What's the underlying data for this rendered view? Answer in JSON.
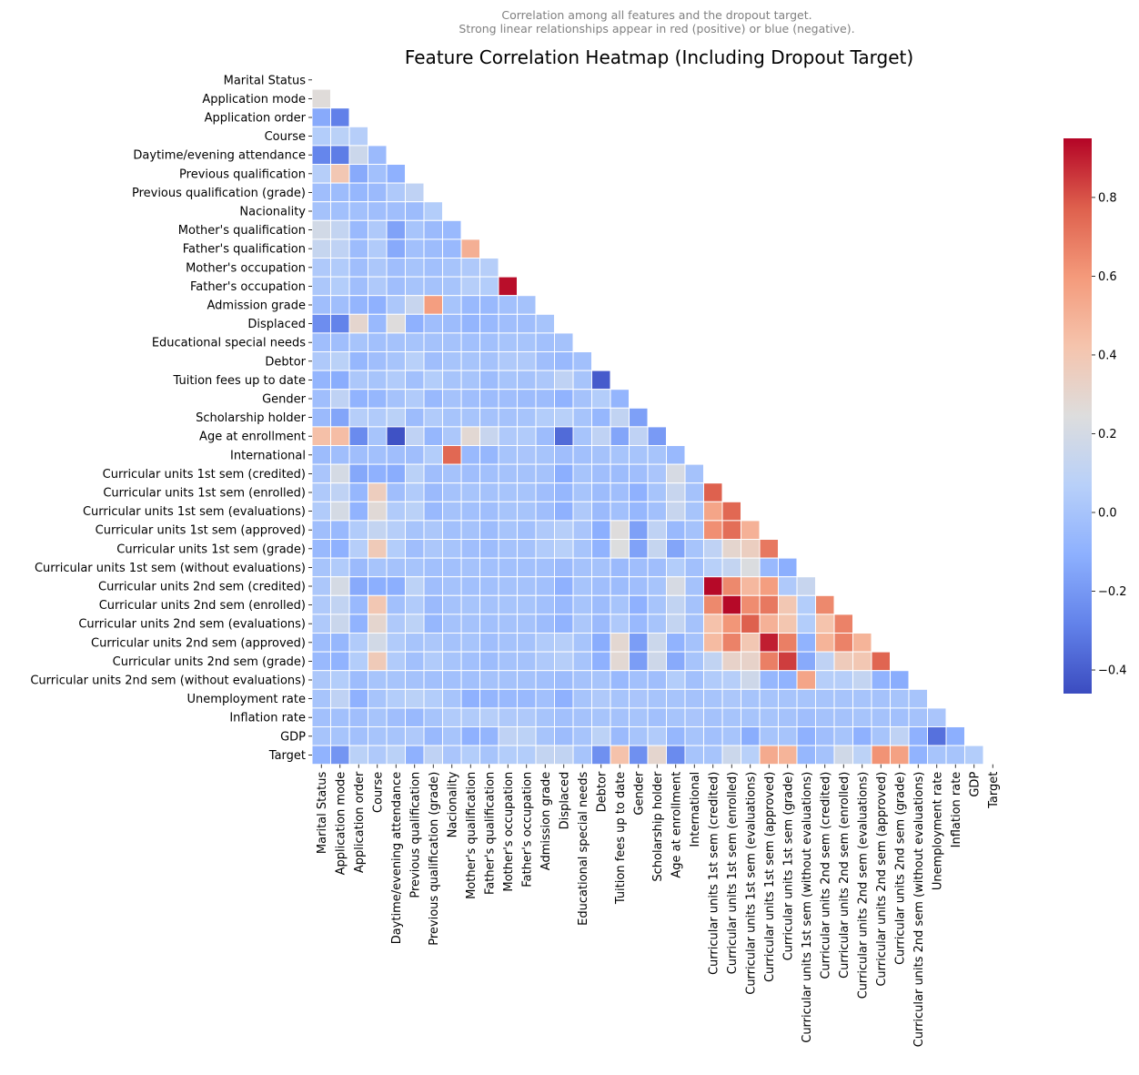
{
  "chart_data": {
    "type": "heatmap",
    "title": "Feature Correlation Heatmap (Including Dropout Target)",
    "subtitle": [
      "Correlation among all features and the dropout target.",
      "Strong linear relationships appear in red (positive) or blue (negative)."
    ],
    "xlabel": "",
    "ylabel": "",
    "mask": "upper-triangle-including-diagonal",
    "colormap": "coolwarm",
    "colors": {
      "low": "#3b4cc0",
      "mid": "#dddddd",
      "high": "#b40426",
      "cell_border": "#ffffff"
    },
    "vmin": -0.46,
    "vmax": 0.95,
    "colorbar": {
      "ticks": [
        -0.4,
        -0.2,
        0.0,
        0.2,
        0.4,
        0.6,
        0.8
      ],
      "tick_labels": [
        "−0.4",
        "−0.2",
        "0.0",
        "0.2",
        "0.4",
        "0.6",
        "0.8"
      ]
    },
    "features": [
      "Marital Status",
      "Application mode",
      "Application order",
      "Course",
      "Daytime/evening attendance",
      "Previous qualification",
      "Previous qualification (grade)",
      "Nacionality",
      "Mother's qualification",
      "Father's qualification",
      "Mother's occupation",
      "Father's occupation",
      "Admission grade",
      "Displaced",
      "Educational special needs",
      "Debtor",
      "Tuition fees up to date",
      "Gender",
      "Scholarship holder",
      "Age at enrollment",
      "International",
      "Curricular units 1st sem (credited)",
      "Curricular units 1st sem (enrolled)",
      "Curricular units 1st sem (evaluations)",
      "Curricular units 1st sem (approved)",
      "Curricular units 1st sem (grade)",
      "Curricular units 1st sem (without evaluations)",
      "Curricular units 2nd sem (credited)",
      "Curricular units 2nd sem (enrolled)",
      "Curricular units 2nd sem (evaluations)",
      "Curricular units 2nd sem (approved)",
      "Curricular units 2nd sem (grade)",
      "Curricular units 2nd sem (without evaluations)",
      "Unemployment rate",
      "Inflation rate",
      "GDP",
      "Target"
    ],
    "values": [
      [],
      [
        0.26
      ],
      [
        -0.13,
        -0.29
      ],
      [
        0.05,
        0.08,
        0.06
      ],
      [
        -0.27,
        -0.3,
        0.16,
        -0.05
      ],
      [
        0.06,
        0.4,
        -0.13,
        -0.02,
        -0.1
      ],
      [
        -0.03,
        -0.04,
        -0.07,
        -0.05,
        0.03,
        0.1
      ],
      [
        -0.01,
        -0.02,
        -0.02,
        -0.03,
        -0.03,
        -0.04,
        0.05
      ],
      [
        0.19,
        0.12,
        -0.06,
        0.03,
        -0.16,
        0.0,
        -0.05,
        -0.06
      ],
      [
        0.13,
        0.1,
        -0.04,
        0.04,
        -0.13,
        -0.02,
        -0.04,
        -0.06,
        0.51
      ],
      [
        0.03,
        0.04,
        -0.03,
        0.02,
        -0.03,
        0.0,
        -0.02,
        0.0,
        0.03,
        0.06
      ],
      [
        0.02,
        0.05,
        -0.03,
        0.03,
        -0.03,
        0.0,
        -0.01,
        0.0,
        0.06,
        0.05,
        0.93
      ],
      [
        -0.03,
        -0.03,
        -0.08,
        -0.1,
        0.02,
        0.14,
        0.58,
        0.0,
        -0.06,
        -0.06,
        -0.02,
        -0.01
      ],
      [
        -0.24,
        -0.28,
        0.3,
        -0.06,
        0.25,
        -0.1,
        -0.03,
        -0.04,
        -0.08,
        -0.06,
        -0.03,
        -0.03,
        0.0
      ],
      [
        -0.03,
        -0.03,
        0.0,
        -0.02,
        -0.01,
        0.0,
        -0.01,
        -0.01,
        -0.02,
        -0.02,
        0.0,
        0.0,
        -0.02,
        -0.01
      ],
      [
        0.03,
        0.08,
        -0.07,
        -0.03,
        0.0,
        0.07,
        -0.03,
        0.0,
        0.0,
        -0.01,
        0.03,
        0.03,
        -0.03,
        -0.06,
        -0.02
      ],
      [
        -0.08,
        -0.12,
        0.02,
        0.0,
        0.04,
        -0.02,
        0.05,
        0.0,
        0.0,
        -0.04,
        0.0,
        -0.01,
        0.02,
        0.1,
        0.0,
        -0.41
      ],
      [
        -0.03,
        0.1,
        -0.09,
        -0.07,
        -0.01,
        0.04,
        -0.06,
        -0.01,
        -0.03,
        -0.04,
        -0.03,
        -0.04,
        -0.04,
        -0.09,
        -0.01,
        0.05,
        -0.08
      ],
      [
        -0.05,
        -0.15,
        0.06,
        0.04,
        0.08,
        -0.04,
        0.04,
        0.0,
        0.0,
        -0.01,
        -0.01,
        0.0,
        0.05,
        0.07,
        0.0,
        -0.07,
        0.11,
        -0.17
      ],
      [
        0.44,
        0.45,
        -0.25,
        0.0,
        -0.44,
        0.1,
        -0.07,
        0.02,
        0.28,
        0.14,
        0.03,
        0.04,
        -0.04,
        -0.36,
        0.0,
        0.1,
        -0.15,
        0.1,
        -0.19
      ],
      [
        -0.04,
        -0.03,
        -0.03,
        -0.02,
        -0.03,
        -0.03,
        0.05,
        0.75,
        -0.06,
        -0.07,
        0.0,
        0.01,
        0.0,
        -0.03,
        -0.02,
        -0.01,
        0.0,
        0.0,
        0.0,
        -0.06
      ],
      [
        0.01,
        0.2,
        -0.14,
        -0.1,
        -0.12,
        0.08,
        -0.03,
        -0.01,
        -0.03,
        -0.02,
        -0.01,
        -0.01,
        -0.01,
        -0.11,
        0.0,
        -0.03,
        -0.04,
        -0.03,
        0.01,
        0.21,
        -0.01
      ],
      [
        0.03,
        0.1,
        -0.07,
        0.36,
        -0.03,
        0.04,
        -0.05,
        -0.01,
        0.0,
        -0.01,
        0.0,
        0.0,
        -0.03,
        -0.07,
        0.0,
        -0.04,
        -0.03,
        -0.1,
        0.0,
        0.14,
        -0.01,
        0.77
      ],
      [
        0.04,
        0.2,
        -0.09,
        0.27,
        0.04,
        0.08,
        -0.06,
        -0.01,
        -0.02,
        -0.03,
        0.0,
        0.0,
        -0.03,
        -0.1,
        0.03,
        -0.05,
        -0.02,
        -0.07,
        -0.02,
        0.14,
        0.0,
        0.55,
        0.75
      ],
      [
        -0.03,
        -0.06,
        0.04,
        0.12,
        0.06,
        0.0,
        0.02,
        -0.02,
        -0.01,
        -0.04,
        0.0,
        -0.02,
        0.03,
        0.06,
        0.01,
        -0.11,
        0.25,
        -0.17,
        0.1,
        -0.06,
        -0.01,
        0.63,
        0.73,
        0.5
      ],
      [
        -0.06,
        -0.1,
        0.06,
        0.38,
        0.05,
        -0.03,
        0.02,
        0.0,
        -0.03,
        -0.04,
        -0.01,
        -0.01,
        0.04,
        0.07,
        0.0,
        -0.09,
        0.24,
        -0.16,
        0.13,
        -0.15,
        0.0,
        0.1,
        0.3,
        0.35,
        0.7
      ],
      [
        0.0,
        0.04,
        -0.05,
        0.0,
        -0.01,
        0.0,
        -0.02,
        -0.02,
        -0.01,
        -0.02,
        -0.02,
        -0.02,
        -0.02,
        -0.05,
        -0.01,
        -0.01,
        -0.05,
        -0.03,
        -0.03,
        0.05,
        -0.02,
        0.07,
        0.12,
        0.23,
        -0.06,
        -0.11
      ],
      [
        0.02,
        0.2,
        -0.13,
        -0.11,
        -0.11,
        0.09,
        -0.03,
        -0.01,
        -0.02,
        -0.02,
        -0.01,
        -0.01,
        -0.02,
        -0.1,
        0.0,
        -0.03,
        -0.04,
        -0.03,
        0.0,
        0.21,
        -0.01,
        0.94,
        0.65,
        0.47,
        0.58,
        0.03,
        0.14
      ],
      [
        0.03,
        0.11,
        -0.06,
        0.4,
        -0.02,
        0.04,
        -0.05,
        -0.01,
        0.0,
        -0.01,
        0.0,
        0.0,
        -0.02,
        -0.06,
        0.0,
        -0.04,
        0.0,
        -0.1,
        0.0,
        0.11,
        -0.01,
        0.65,
        0.94,
        0.64,
        0.7,
        0.4,
        0.05,
        0.65
      ],
      [
        0.03,
        0.15,
        -0.09,
        0.3,
        0.03,
        0.09,
        -0.07,
        -0.01,
        -0.01,
        -0.02,
        -0.01,
        -0.01,
        -0.04,
        -0.09,
        0.02,
        -0.05,
        0.03,
        -0.06,
        0.0,
        0.12,
        -0.01,
        0.43,
        0.61,
        0.77,
        0.5,
        0.41,
        0.05,
        0.42,
        0.67
      ],
      [
        -0.04,
        -0.07,
        0.04,
        0.19,
        0.04,
        0.0,
        0.02,
        -0.01,
        0.0,
        -0.03,
        -0.01,
        -0.01,
        0.04,
        0.06,
        0.0,
        -0.12,
        0.29,
        -0.18,
        0.16,
        -0.09,
        -0.01,
        0.46,
        0.67,
        0.4,
        0.9,
        0.68,
        -0.09,
        0.49,
        0.67,
        0.49
      ],
      [
        -0.06,
        -0.09,
        0.05,
        0.38,
        0.04,
        -0.02,
        0.04,
        0.0,
        -0.02,
        -0.04,
        -0.01,
        -0.01,
        0.03,
        0.06,
        0.0,
        -0.1,
        0.28,
        -0.18,
        0.17,
        -0.13,
        0.0,
        0.11,
        0.32,
        0.32,
        0.68,
        0.84,
        -0.13,
        0.1,
        0.37,
        0.4,
        0.76
      ],
      [
        0.02,
        0.05,
        -0.04,
        0.0,
        0.0,
        -0.01,
        -0.02,
        -0.02,
        -0.02,
        -0.01,
        -0.01,
        -0.01,
        -0.02,
        -0.04,
        -0.01,
        0.0,
        -0.06,
        -0.02,
        -0.03,
        0.05,
        -0.02,
        0.04,
        0.06,
        0.17,
        -0.07,
        -0.09,
        0.55,
        0.06,
        0.06,
        0.12,
        -0.09,
        -0.12
      ],
      [
        0.0,
        0.1,
        -0.1,
        0.0,
        0.05,
        0.08,
        0.05,
        0.0,
        -0.1,
        -0.08,
        -0.06,
        -0.06,
        -0.02,
        -0.1,
        0.0,
        0.03,
        0.0,
        0.01,
        0.0,
        0.0,
        -0.01,
        0.0,
        0.02,
        0.0,
        0.0,
        0.0,
        0.0,
        0.0,
        0.0,
        0.0,
        -0.01,
        0.0,
        0.0
      ],
      [
        -0.02,
        -0.02,
        -0.03,
        0.0,
        -0.03,
        -0.06,
        0.0,
        0.04,
        0.04,
        0.06,
        0.03,
        0.03,
        0.0,
        -0.02,
        -0.01,
        0.0,
        -0.01,
        0.0,
        -0.02,
        0.0,
        0.01,
        -0.01,
        0.0,
        0.0,
        0.0,
        -0.01,
        -0.03,
        -0.01,
        -0.01,
        0.0,
        -0.01,
        -0.02,
        -0.01,
        0.01
      ],
      [
        0.0,
        0.0,
        -0.02,
        0.0,
        0.0,
        0.03,
        -0.06,
        0.0,
        -0.1,
        -0.08,
        0.1,
        0.09,
        0.0,
        -0.04,
        0.0,
        0.09,
        -0.05,
        0.0,
        0.04,
        -0.07,
        0.0,
        -0.02,
        0.0,
        -0.12,
        0.0,
        0.0,
        -0.1,
        -0.03,
        0.0,
        -0.1,
        0.0,
        0.1,
        -0.1,
        -0.34,
        -0.11
      ],
      [
        -0.09,
        -0.21,
        0.08,
        0.03,
        0.08,
        -0.1,
        0.1,
        0.01,
        0.05,
        0.0,
        0.05,
        0.05,
        0.12,
        0.11,
        0.0,
        -0.23,
        0.43,
        -0.23,
        0.3,
        -0.25,
        0.0,
        0.0,
        0.16,
        0.07,
        0.53,
        0.49,
        -0.07,
        -0.01,
        0.18,
        0.09,
        0.62,
        0.57,
        -0.09,
        0.0,
        0.0,
        0.05
      ]
    ]
  }
}
